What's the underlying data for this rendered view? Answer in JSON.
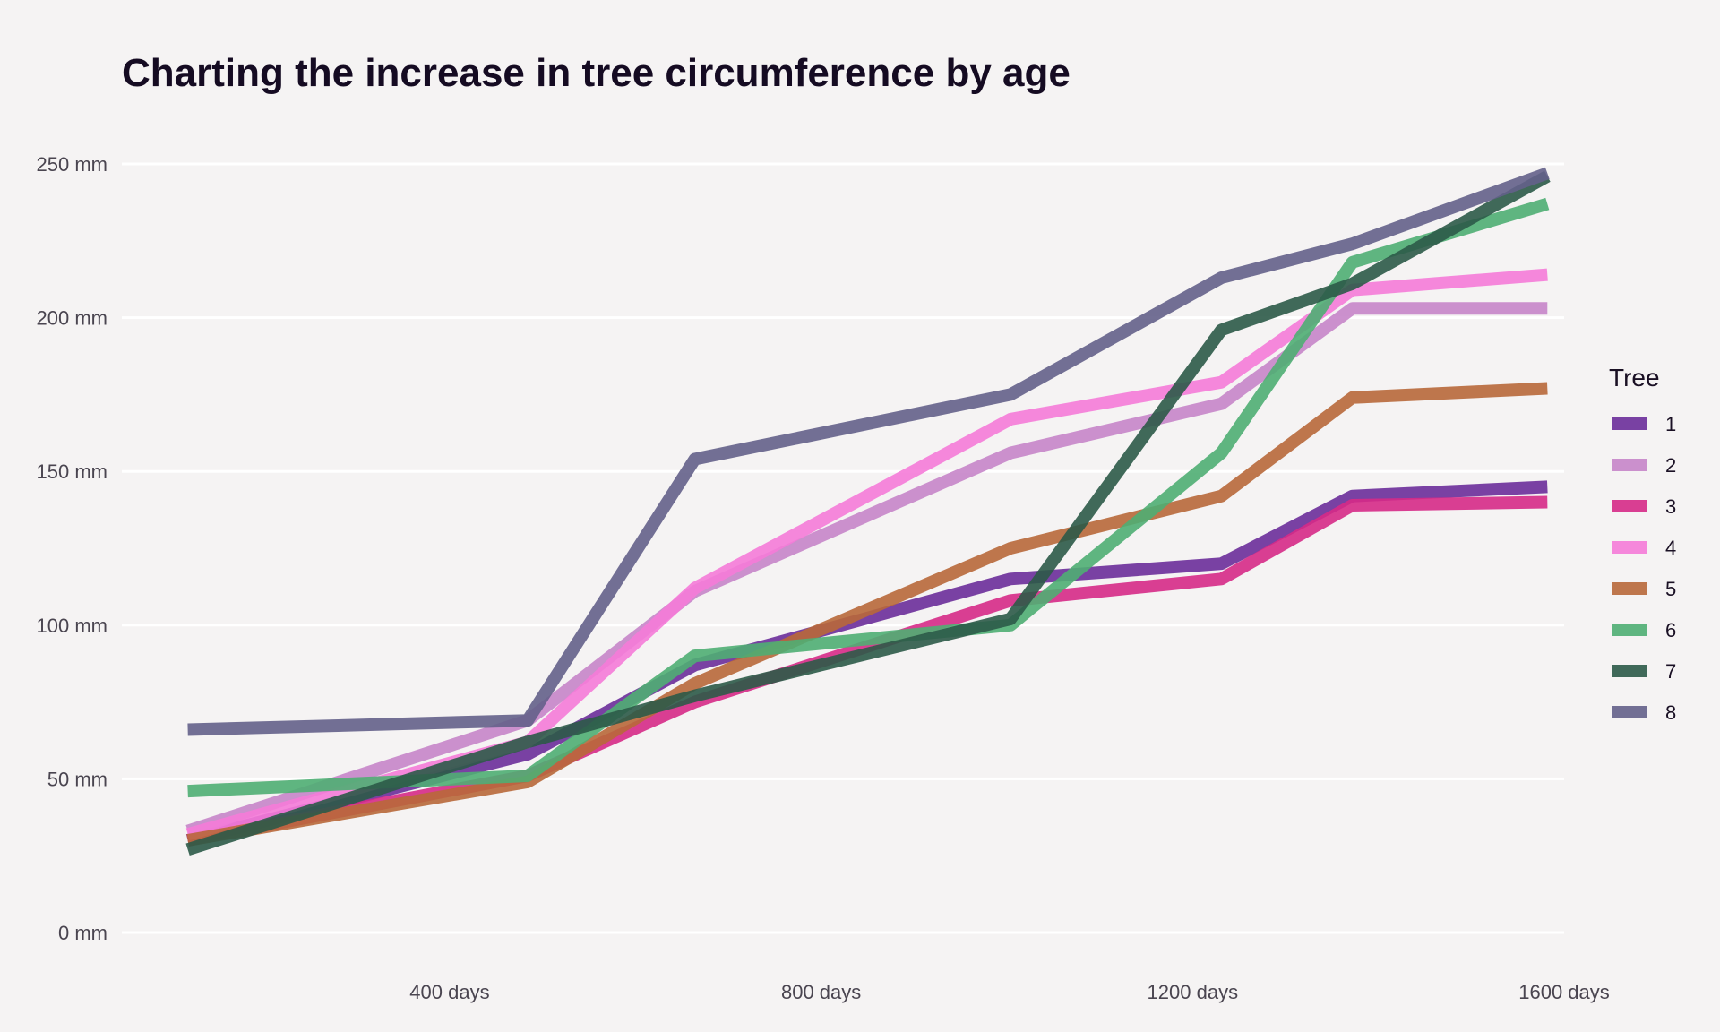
{
  "chart_data": {
    "type": "line",
    "title": "Charting the increase in tree circumference by age",
    "xlabel": "",
    "ylabel": "",
    "x": [
      118,
      484,
      664,
      1004,
      1231,
      1372,
      1582
    ],
    "x_ticks": [
      "400 days",
      "800 days",
      "1200 days",
      "1600 days"
    ],
    "x_tick_values": [
      400,
      800,
      1200,
      1600
    ],
    "y_ticks": [
      "0 mm",
      "50 mm",
      "100 mm",
      "150 mm",
      "200 mm",
      "250 mm"
    ],
    "y_tick_values": [
      0,
      50,
      100,
      150,
      200,
      250
    ],
    "xlim": [
      47,
      1600
    ],
    "ylim": [
      0,
      250
    ],
    "grid": true,
    "legend_title": "Tree",
    "legend_position": "right",
    "series": [
      {
        "name": "1",
        "color": "#6b2d9a",
        "values": [
          30,
          58,
          87,
          115,
          120,
          142,
          145
        ]
      },
      {
        "name": "2",
        "color": "#c785c9",
        "values": [
          33,
          69,
          111,
          156,
          172,
          203,
          203
        ]
      },
      {
        "name": "3",
        "color": "#d62a87",
        "values": [
          30,
          51,
          75,
          108,
          115,
          139,
          140
        ]
      },
      {
        "name": "4",
        "color": "#f57bd8",
        "values": [
          32,
          62,
          112,
          167,
          179,
          209,
          214
        ]
      },
      {
        "name": "5",
        "color": "#b8683a",
        "values": [
          30,
          49,
          81,
          125,
          142,
          174,
          177
        ]
      },
      {
        "name": "6",
        "color": "#4fae73",
        "values": [
          46,
          51,
          90,
          100,
          156,
          218,
          237
        ]
      },
      {
        "name": "7",
        "color": "#2c5a48",
        "values": [
          27,
          62,
          77,
          102,
          196,
          211,
          246
        ]
      },
      {
        "name": "8",
        "color": "#64608a",
        "values": [
          66,
          69,
          154,
          175,
          213,
          224,
          247
        ]
      }
    ]
  }
}
